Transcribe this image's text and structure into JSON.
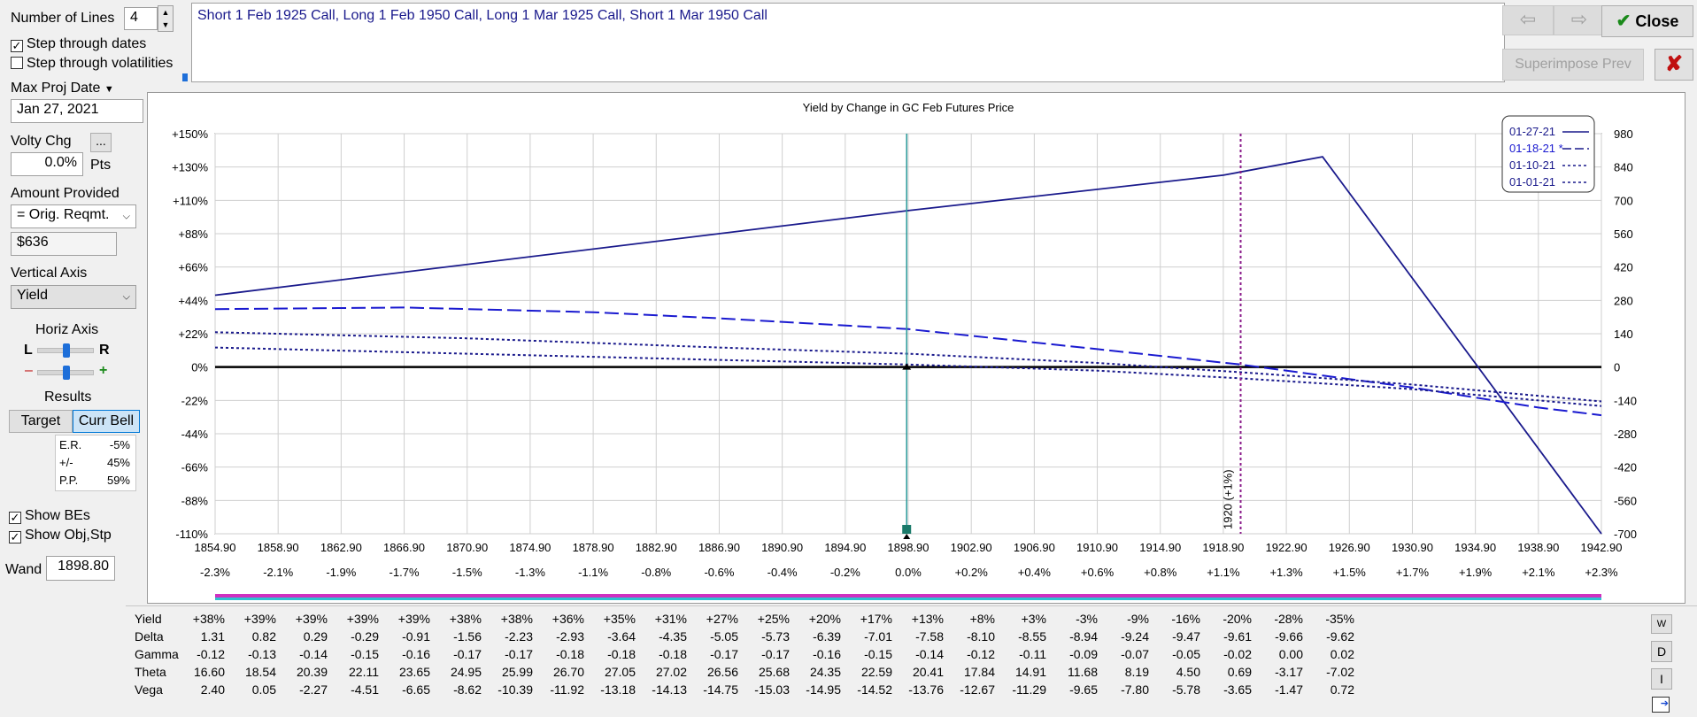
{
  "controls": {
    "number_of_lines_label": "Number of Lines",
    "number_of_lines_value": "4",
    "step_dates_label": "Step through dates",
    "step_dates_checked": true,
    "step_vols_label": "Step through volatilities",
    "step_vols_checked": false,
    "max_proj_date_label": "Max Proj Date",
    "max_proj_date_value": "Jan 27, 2021",
    "volty_chg_label": "Volty Chg",
    "volty_chg_button": "...",
    "volty_chg_value": "0.0%",
    "volty_chg_unit": "Pts",
    "amount_provided_label": "Amount Provided",
    "amount_provided_value": "= Orig. Reqmt.",
    "amount_value": "$636",
    "vertical_axis_label": "Vertical Axis",
    "vertical_axis_value": "Yield",
    "horiz_axis_label": "Horiz Axis",
    "horiz_left": "L",
    "horiz_right": "R",
    "horiz_minus": "–",
    "horiz_plus": "+",
    "results_label": "Results",
    "target_button": "Target",
    "curr_bell_button": "Curr Bell",
    "stats": [
      {
        "name": "E.R.",
        "value": "-5%"
      },
      {
        "name": "+/-",
        "value": "45%"
      },
      {
        "name": "P.P.",
        "value": "59%"
      }
    ],
    "show_bes_label": "Show BEs",
    "show_bes_checked": true,
    "show_obj_label": "Show Obj,Stp",
    "show_obj_checked": true,
    "wand_label": "Wand",
    "wand_value": "1898.80"
  },
  "description": "Short 1 Feb 1925 Call, Long 1 Feb 1950 Call, Long 1 Mar 1925 Call, Short 1 Mar 1950 Call",
  "toolbar": {
    "close_label": "Close",
    "superimpose_label": "Superimpose Prev",
    "check_icon": "check-icon",
    "x_icon": "x-icon"
  },
  "colors": {
    "series_blue": "#1a1a8c",
    "dash_blue": "#1a1ad0",
    "crosshair": "#2a9a9a",
    "target_line": "#8a1a8a",
    "teal_marker": "#1a7a6a",
    "x_red": "#c01010",
    "check_green": "#1a8a1a",
    "desc_text": "#1a1a8c"
  },
  "chart_data": {
    "type": "line",
    "title": "Yield by Change in GC Feb Futures Price",
    "x_ticks": [
      "1854.90",
      "1858.90",
      "1862.90",
      "1866.90",
      "1870.90",
      "1874.90",
      "1878.90",
      "1882.90",
      "1886.90",
      "1890.90",
      "1894.90",
      "1898.90",
      "1902.90",
      "1906.90",
      "1910.90",
      "1914.90",
      "1918.90",
      "1922.90",
      "1926.90",
      "1930.90",
      "1934.90",
      "1938.90",
      "1942.90"
    ],
    "x_pct_ticks": [
      "-2.3%",
      "-2.1%",
      "-1.9%",
      "-1.7%",
      "-1.5%",
      "-1.3%",
      "-1.1%",
      "-0.8%",
      "-0.6%",
      "-0.4%",
      "-0.2%",
      "0.0%",
      "+0.2%",
      "+0.4%",
      "+0.6%",
      "+0.8%",
      "+1.1%",
      "+1.3%",
      "+1.5%",
      "+1.7%",
      "+1.9%",
      "+2.1%",
      "+2.3%"
    ],
    "y_ticks": [
      "+150%",
      "+130%",
      "+110%",
      "+88%",
      "+66%",
      "+44%",
      "+22%",
      "0%",
      "-22%",
      "-44%",
      "-66%",
      "-88%",
      "-110%"
    ],
    "y2_ticks": [
      "980",
      "840",
      "700",
      "560",
      "420",
      "280",
      "140",
      "0",
      "-140",
      "-280",
      "-420",
      "-560",
      "-700"
    ],
    "xlim": [
      1854.9,
      1942.9
    ],
    "ylim": [
      -110,
      150
    ],
    "wand_x": 1898.8,
    "target_x": 1920,
    "target_label": "1920 (+1%)",
    "legend_position": "top-right",
    "series": [
      {
        "name": "01-27-21",
        "style": "solid",
        "x": [
          1854.9,
          1898.9,
          1918.9,
          1925.2,
          1942.9
        ],
        "y": [
          45,
          100,
          123,
          135,
          -110
        ]
      },
      {
        "name": "01-18-21 *",
        "style": "longdash",
        "x": [
          1854.9,
          1866.9,
          1878.9,
          1886.9,
          1898.9,
          1910.9,
          1920,
          1930.9,
          1938.9,
          1942.9
        ],
        "y": [
          36,
          37,
          34,
          30,
          23,
          10,
          0,
          -15,
          -28,
          -33
        ]
      },
      {
        "name": "01-10-21",
        "style": "dotted",
        "x": [
          1854.9,
          1870.9,
          1886.9,
          1898.9,
          1910.9,
          1920,
          1930.9,
          1942.9
        ],
        "y": [
          21,
          17,
          11,
          7,
          1,
          -5,
          -13,
          -24
        ]
      },
      {
        "name": "01-01-21",
        "style": "dotted",
        "x": [
          1854.9,
          1870.9,
          1886.9,
          1898.9,
          1910.9,
          1920,
          1930.9,
          1942.9
        ],
        "y": [
          11,
          7,
          3,
          0,
          -4,
          -9,
          -16,
          -27
        ]
      }
    ]
  },
  "greeks": [
    {
      "name": "Yield",
      "values": [
        "+38%",
        "+39%",
        "+39%",
        "+39%",
        "+39%",
        "+38%",
        "+38%",
        "+36%",
        "+35%",
        "+31%",
        "+27%",
        "+25%",
        "+20%",
        "+17%",
        "+13%",
        "+8%",
        "+3%",
        "-3%",
        "-9%",
        "-16%",
        "-20%",
        "-28%",
        "-35%"
      ]
    },
    {
      "name": "Delta",
      "values": [
        "1.31",
        "0.82",
        "0.29",
        "-0.29",
        "-0.91",
        "-1.56",
        "-2.23",
        "-2.93",
        "-3.64",
        "-4.35",
        "-5.05",
        "-5.73",
        "-6.39",
        "-7.01",
        "-7.58",
        "-8.10",
        "-8.55",
        "-8.94",
        "-9.24",
        "-9.47",
        "-9.61",
        "-9.66",
        "-9.62"
      ]
    },
    {
      "name": "Gamma",
      "values": [
        "-0.12",
        "-0.13",
        "-0.14",
        "-0.15",
        "-0.16",
        "-0.17",
        "-0.17",
        "-0.18",
        "-0.18",
        "-0.18",
        "-0.17",
        "-0.17",
        "-0.16",
        "-0.15",
        "-0.14",
        "-0.12",
        "-0.11",
        "-0.09",
        "-0.07",
        "-0.05",
        "-0.02",
        "0.00",
        "0.02"
      ]
    },
    {
      "name": "Theta",
      "values": [
        "16.60",
        "18.54",
        "20.39",
        "22.11",
        "23.65",
        "24.95",
        "25.99",
        "26.70",
        "27.05",
        "27.02",
        "26.56",
        "25.68",
        "24.35",
        "22.59",
        "20.41",
        "17.84",
        "14.91",
        "11.68",
        "8.19",
        "4.50",
        "0.69",
        "-3.17",
        "-7.02"
      ]
    },
    {
      "name": "Vega",
      "values": [
        "2.40",
        "0.05",
        "-2.27",
        "-4.51",
        "-6.65",
        "-8.62",
        "-10.39",
        "-11.92",
        "-13.18",
        "-14.13",
        "-14.75",
        "-15.03",
        "-14.95",
        "-14.52",
        "-13.76",
        "-12.67",
        "-11.29",
        "-9.65",
        "-7.80",
        "-5.78",
        "-3.65",
        "-1.47",
        "0.72"
      ]
    }
  ],
  "side_buttons": [
    {
      "name": "W",
      "icon": "w-icon"
    },
    {
      "name": "D",
      "icon": "d-icon"
    },
    {
      "name": "I",
      "icon": "i-icon"
    },
    {
      "name": "",
      "icon": "export-icon"
    }
  ]
}
